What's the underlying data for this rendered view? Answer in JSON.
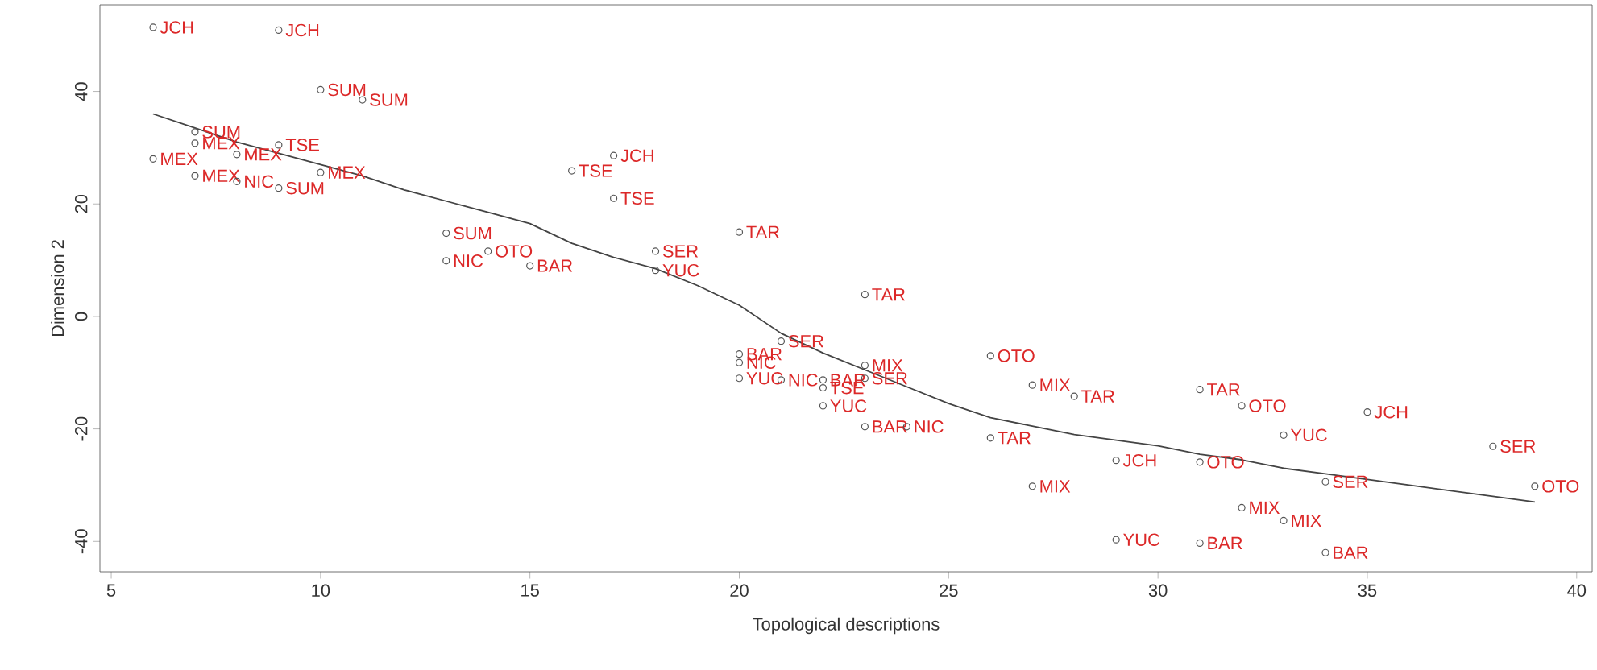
{
  "chart_data": {
    "type": "scatter",
    "xlabel": "Topological descriptions",
    "ylabel": "Dimension 2",
    "xlim": [
      4.73,
      40.37
    ],
    "ylim": [
      -45.4,
      55.4
    ],
    "xticks": [
      5,
      10,
      15,
      20,
      25,
      30,
      35,
      40
    ],
    "yticks": [
      -40,
      -20,
      0,
      20,
      40
    ],
    "marker": "circle",
    "series": [
      {
        "color": "#555555",
        "x": [
          6,
          9,
          10,
          11,
          7,
          7,
          9,
          6,
          8,
          7,
          8,
          9,
          10,
          13,
          13,
          14,
          15,
          17,
          16,
          17,
          18,
          18,
          20,
          23,
          21,
          20,
          20,
          20,
          21,
          22,
          22,
          22,
          23,
          23,
          23,
          24,
          26,
          27,
          28,
          26,
          27,
          29,
          29,
          31,
          31,
          31,
          32,
          32,
          33,
          33,
          34,
          34,
          35,
          38,
          39
        ],
        "values": [
          51.4,
          50.9,
          40.3,
          38.5,
          32.8,
          30.8,
          30.5,
          28,
          28.8,
          25,
          24,
          22.8,
          25.6,
          14.8,
          9.9,
          11.6,
          9,
          28.6,
          25.9,
          21,
          11.6,
          8.2,
          15,
          3.9,
          -4.4,
          -6.7,
          -8.2,
          -11,
          -11.3,
          -11.3,
          -12.7,
          -15.9,
          -8.7,
          -11,
          -19.6,
          -19.6,
          -7,
          -12.2,
          -14.2,
          -21.6,
          -30.2,
          -25.6,
          -39.7,
          -13,
          -25.9,
          -40.3,
          -15.9,
          -34,
          -21.1,
          -36.3,
          -29.4,
          -42,
          -17,
          -23.1,
          -30.2
        ]
      },
      {
        "type": "line",
        "marker": "none",
        "color": "#444444",
        "x": [
          6,
          7,
          8,
          9,
          10,
          11,
          12,
          13,
          14,
          15,
          16,
          17,
          18,
          19,
          20,
          21,
          22,
          23,
          24,
          25,
          26,
          27,
          28,
          29,
          30,
          31,
          32,
          33,
          34,
          35,
          36,
          37,
          38,
          39
        ],
        "values": [
          36,
          33.5,
          31,
          29,
          27,
          25,
          22.5,
          20.5,
          18.5,
          16.5,
          13,
          10.5,
          8.5,
          5.5,
          2,
          -3,
          -6.5,
          -9.5,
          -12.5,
          -15.5,
          -18,
          -19.5,
          -21,
          -22,
          -23,
          -24.5,
          -25.5,
          -27,
          -28,
          -29,
          -30,
          -31,
          -32,
          -33
        ]
      }
    ],
    "annotations": [
      {
        "text": "JCH",
        "x": 6,
        "y": 51.4
      },
      {
        "text": "JCH",
        "x": 9,
        "y": 50.9
      },
      {
        "text": "SUM",
        "x": 10,
        "y": 40.3
      },
      {
        "text": "SUM",
        "x": 11,
        "y": 38.5
      },
      {
        "text": "SUM",
        "x": 7,
        "y": 32.8
      },
      {
        "text": "MEX",
        "x": 7,
        "y": 30.8
      },
      {
        "text": "TSE",
        "x": 9,
        "y": 30.5
      },
      {
        "text": "MEX",
        "x": 6,
        "y": 28
      },
      {
        "text": "MEX",
        "x": 8,
        "y": 28.8
      },
      {
        "text": "MEX",
        "x": 7,
        "y": 25
      },
      {
        "text": "NIC",
        "x": 8,
        "y": 24
      },
      {
        "text": "SUM",
        "x": 9,
        "y": 22.8
      },
      {
        "text": "MEX",
        "x": 10,
        "y": 25.6
      },
      {
        "text": "SUM",
        "x": 13,
        "y": 14.8
      },
      {
        "text": "NIC",
        "x": 13,
        "y": 9.9
      },
      {
        "text": "OTO",
        "x": 14,
        "y": 11.6
      },
      {
        "text": "BAR",
        "x": 15,
        "y": 9
      },
      {
        "text": "JCH",
        "x": 17,
        "y": 28.6
      },
      {
        "text": "TSE",
        "x": 16,
        "y": 25.9
      },
      {
        "text": "TSE",
        "x": 17,
        "y": 21
      },
      {
        "text": "SER",
        "x": 18,
        "y": 11.6
      },
      {
        "text": "YUC",
        "x": 18,
        "y": 8.2
      },
      {
        "text": "TAR",
        "x": 20,
        "y": 15
      },
      {
        "text": "TAR",
        "x": 23,
        "y": 3.9
      },
      {
        "text": "SER",
        "x": 21,
        "y": -4.4
      },
      {
        "text": "BAR",
        "x": 20,
        "y": -6.7
      },
      {
        "text": "NIC",
        "x": 20,
        "y": -8.2
      },
      {
        "text": "YUC",
        "x": 20,
        "y": -11
      },
      {
        "text": "NIC",
        "x": 21,
        "y": -11.3
      },
      {
        "text": "BAR",
        "x": 22,
        "y": -11.3
      },
      {
        "text": "TSE",
        "x": 22,
        "y": -12.7
      },
      {
        "text": "YUC",
        "x": 22,
        "y": -15.9
      },
      {
        "text": "MIX",
        "x": 23,
        "y": -8.7
      },
      {
        "text": "SER",
        "x": 23,
        "y": -11
      },
      {
        "text": "BAR",
        "x": 23,
        "y": -19.6
      },
      {
        "text": "NIC",
        "x": 24,
        "y": -19.6
      },
      {
        "text": "OTO",
        "x": 26,
        "y": -7
      },
      {
        "text": "MIX",
        "x": 27,
        "y": -12.2
      },
      {
        "text": "TAR",
        "x": 28,
        "y": -14.2
      },
      {
        "text": "TAR",
        "x": 26,
        "y": -21.6
      },
      {
        "text": "MIX",
        "x": 27,
        "y": -30.2
      },
      {
        "text": "JCH",
        "x": 29,
        "y": -25.6
      },
      {
        "text": "YUC",
        "x": 29,
        "y": -39.7
      },
      {
        "text": "TAR",
        "x": 31,
        "y": -13
      },
      {
        "text": "OTO",
        "x": 31,
        "y": -25.9
      },
      {
        "text": "BAR",
        "x": 31,
        "y": -40.3
      },
      {
        "text": "OTO",
        "x": 32,
        "y": -15.9
      },
      {
        "text": "MIX",
        "x": 32,
        "y": -34
      },
      {
        "text": "YUC",
        "x": 33,
        "y": -21.1
      },
      {
        "text": "MIX",
        "x": 33,
        "y": -36.3
      },
      {
        "text": "SER",
        "x": 34,
        "y": -29.4
      },
      {
        "text": "BAR",
        "x": 34,
        "y": -42
      },
      {
        "text": "JCH",
        "x": 35,
        "y": -17
      },
      {
        "text": "SER",
        "x": 38,
        "y": -23.1
      },
      {
        "text": "OTO",
        "x": 39,
        "y": -30.2
      }
    ]
  }
}
